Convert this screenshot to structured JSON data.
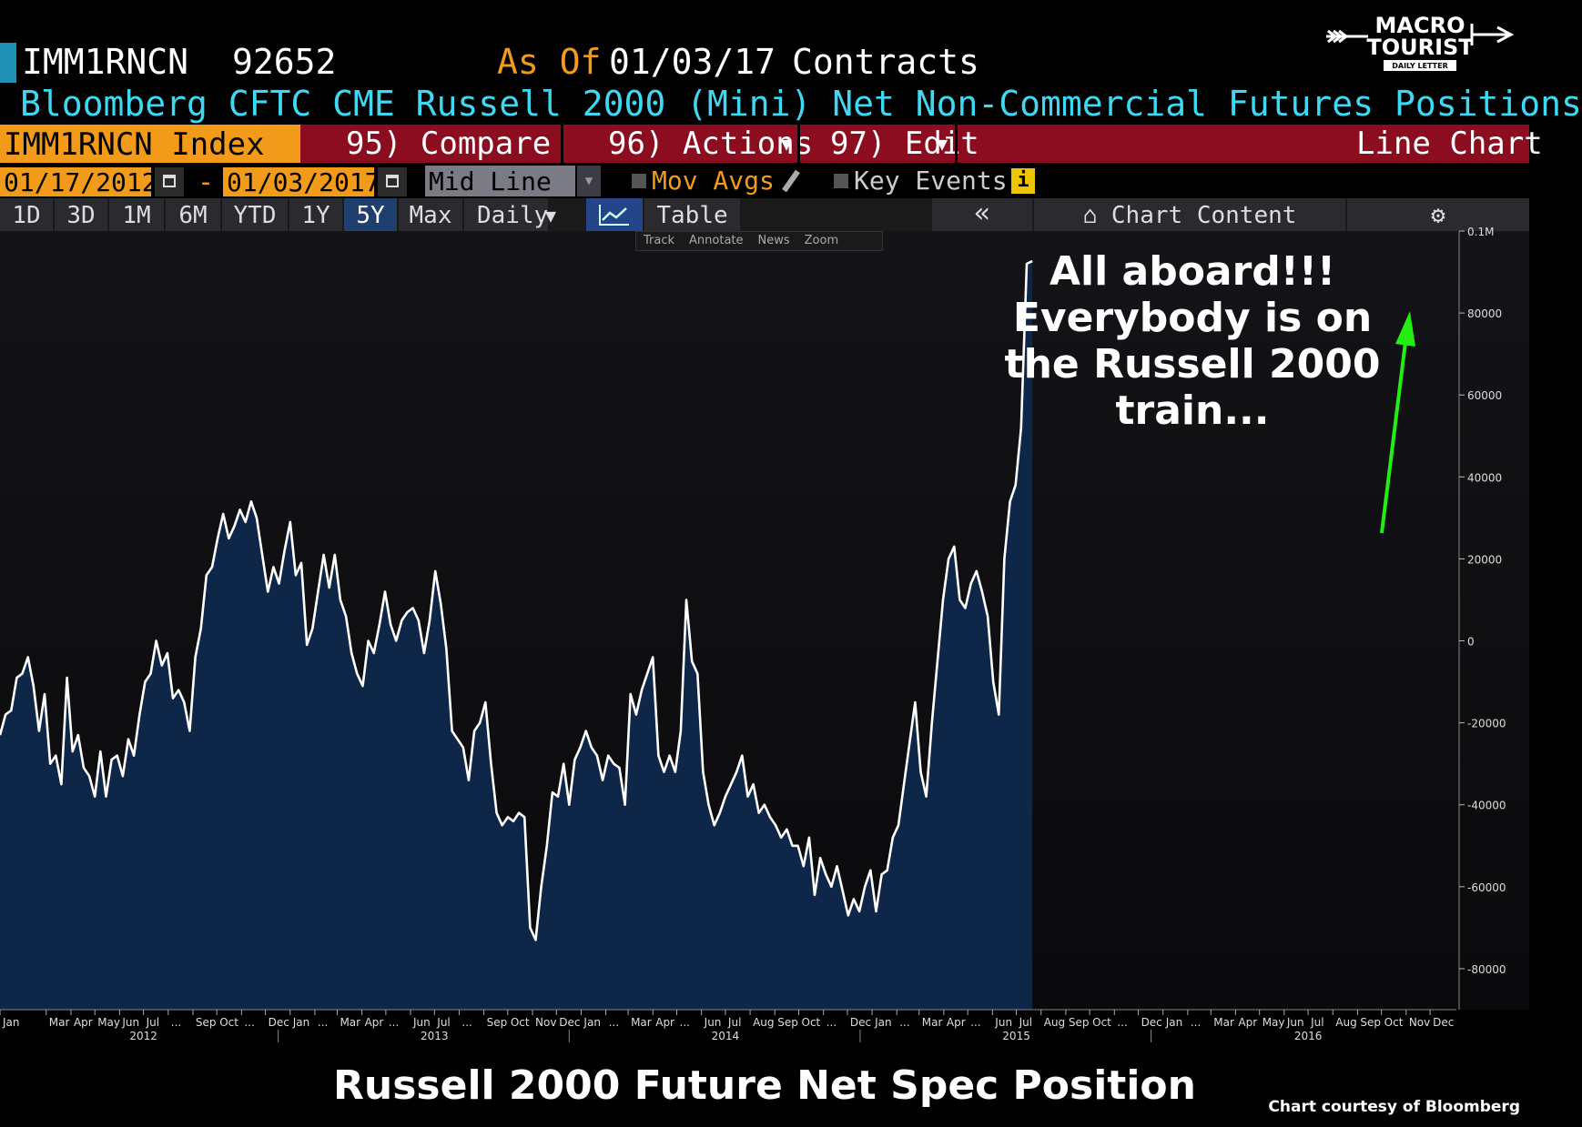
{
  "header": {
    "ticker": "IMM1RNCN",
    "last_value": "92652",
    "as_of_label": "As Of",
    "as_of_date": "01/03/17",
    "units": "Contracts",
    "description": "Bloomberg CFTC CME Russell 2000 (Mini) Net Non-Commercial Futures Positions"
  },
  "logo": {
    "line1": "MACRO",
    "line2": "TOURIST",
    "line3": "DAILY LETTER"
  },
  "toolbar": {
    "index_label": "IMM1RNCN Index",
    "compare_label": "95) Compare",
    "actions_label": "96) Actions",
    "edit_label": "97) Edit",
    "chart_type_label": "Line Chart"
  },
  "controls": {
    "start_date": "01/17/2012",
    "end_date": "01/03/2017",
    "mid_line": "Mid Line",
    "mov_avgs": "Mov Avgs",
    "key_events": "Key Events",
    "info": "i"
  },
  "ranges": [
    "1D",
    "3D",
    "1M",
    "6M",
    "YTD",
    "1Y",
    "5Y",
    "Max"
  ],
  "selected_range": "5Y",
  "frequency": "Daily",
  "view_table_label": "Table",
  "collapse_label": "«",
  "chart_content_label": "Chart Content",
  "subtools": [
    "Track",
    "Annotate",
    "News",
    "Zoom"
  ],
  "annotation": [
    "All aboard!!!",
    "Everybody is on",
    "the Russell 2000",
    "train..."
  ],
  "caption": "Russell 2000 Future Net Spec Position",
  "credit": "Chart courtesy of Bloomberg",
  "colors": {
    "fill": "#0e2647",
    "line": "#ffffff",
    "arrow": "#22ee11",
    "orange": "#f29a1a",
    "cyan": "#3fd8f2"
  },
  "chart_data": {
    "type": "area",
    "title": "Russell 2000 Future Net Spec Position",
    "xlabel": "",
    "ylabel": "",
    "xlim": [
      "2012-01-03",
      "2017-01-03"
    ],
    "ylim": [
      -90000,
      100000
    ],
    "y_ticks": [
      100000,
      80000,
      60000,
      40000,
      20000,
      0,
      -20000,
      -40000,
      -60000,
      -80000
    ],
    "y_tick_labels": [
      "0.1M",
      "80000",
      "60000",
      "40000",
      "20000",
      "0",
      "-20000",
      "-40000",
      "-60000",
      "-80000"
    ],
    "x_month_ticks": [
      {
        "date": "2012-01-03",
        "label": "Jan"
      },
      {
        "date": "2012-03-01",
        "label": "Mar"
      },
      {
        "date": "2012-04-01",
        "label": "Apr"
      },
      {
        "date": "2012-05-01",
        "label": "May"
      },
      {
        "date": "2012-06-01",
        "label": "Jun"
      },
      {
        "date": "2012-07-01",
        "label": "Jul"
      },
      {
        "date": "2012-08-01",
        "label": "..."
      },
      {
        "date": "2012-09-01",
        "label": "Sep"
      },
      {
        "date": "2012-10-01",
        "label": "Oct"
      },
      {
        "date": "2012-11-01",
        "label": "..."
      },
      {
        "date": "2012-12-01",
        "label": "Dec"
      },
      {
        "date": "2013-01-01",
        "label": "Jan"
      },
      {
        "date": "2013-02-01",
        "label": "..."
      },
      {
        "date": "2013-03-01",
        "label": "Mar"
      },
      {
        "date": "2013-04-01",
        "label": "Apr"
      },
      {
        "date": "2013-05-01",
        "label": "..."
      },
      {
        "date": "2013-06-01",
        "label": "Jun"
      },
      {
        "date": "2013-07-01",
        "label": "Jul"
      },
      {
        "date": "2013-08-01",
        "label": "..."
      },
      {
        "date": "2013-09-01",
        "label": "Sep"
      },
      {
        "date": "2013-10-01",
        "label": "Oct"
      },
      {
        "date": "2013-11-01",
        "label": "Nov"
      },
      {
        "date": "2013-12-01",
        "label": "Dec"
      },
      {
        "date": "2014-01-01",
        "label": "Jan"
      },
      {
        "date": "2014-02-01",
        "label": "..."
      },
      {
        "date": "2014-03-01",
        "label": "Mar"
      },
      {
        "date": "2014-04-01",
        "label": "Apr"
      },
      {
        "date": "2014-05-01",
        "label": "..."
      },
      {
        "date": "2014-06-01",
        "label": "Jun"
      },
      {
        "date": "2014-07-01",
        "label": "Jul"
      },
      {
        "date": "2014-08-01",
        "label": "Aug"
      },
      {
        "date": "2014-09-01",
        "label": "Sep"
      },
      {
        "date": "2014-10-01",
        "label": "Oct"
      },
      {
        "date": "2014-11-01",
        "label": "..."
      },
      {
        "date": "2014-12-01",
        "label": "Dec"
      },
      {
        "date": "2015-01-01",
        "label": "Jan"
      },
      {
        "date": "2015-02-01",
        "label": "..."
      },
      {
        "date": "2015-03-01",
        "label": "Mar"
      },
      {
        "date": "2015-04-01",
        "label": "Apr"
      },
      {
        "date": "2015-05-01",
        "label": "..."
      },
      {
        "date": "2015-06-01",
        "label": "Jun"
      },
      {
        "date": "2015-07-01",
        "label": "Jul"
      },
      {
        "date": "2015-08-01",
        "label": "Aug"
      },
      {
        "date": "2015-09-01",
        "label": "Sep"
      },
      {
        "date": "2015-10-01",
        "label": "Oct"
      },
      {
        "date": "2015-11-01",
        "label": "..."
      },
      {
        "date": "2015-12-01",
        "label": "Dec"
      },
      {
        "date": "2016-01-01",
        "label": "Jan"
      },
      {
        "date": "2016-02-01",
        "label": "..."
      },
      {
        "date": "2016-03-01",
        "label": "Mar"
      },
      {
        "date": "2016-04-01",
        "label": "Apr"
      },
      {
        "date": "2016-05-01",
        "label": "May"
      },
      {
        "date": "2016-06-01",
        "label": "Jun"
      },
      {
        "date": "2016-07-01",
        "label": "Jul"
      },
      {
        "date": "2016-08-01",
        "label": "Aug"
      },
      {
        "date": "2016-09-01",
        "label": "Sep"
      },
      {
        "date": "2016-10-01",
        "label": "Oct"
      },
      {
        "date": "2016-11-01",
        "label": "Nov"
      },
      {
        "date": "2016-12-01",
        "label": "Dec"
      }
    ],
    "x_year_ticks": [
      {
        "date": "2012-07-01",
        "label": "2012"
      },
      {
        "date": "2013-07-01",
        "label": "2013"
      },
      {
        "date": "2014-07-01",
        "label": "2014"
      },
      {
        "date": "2015-07-01",
        "label": "2015"
      },
      {
        "date": "2016-07-01",
        "label": "2016"
      }
    ],
    "x_year_separators": [
      "2012-12-17",
      "2013-12-17",
      "2014-12-17",
      "2015-12-17"
    ],
    "series": [
      {
        "values": [
          [
            "2012-01-03",
            -23000
          ],
          [
            "2012-01-10",
            -18000
          ],
          [
            "2012-01-17",
            -17000
          ],
          [
            "2012-01-24",
            -9000
          ],
          [
            "2012-01-31",
            -8000
          ],
          [
            "2012-02-07",
            -4000
          ],
          [
            "2012-02-14",
            -11000
          ],
          [
            "2012-02-21",
            -22000
          ],
          [
            "2012-02-28",
            -13000
          ],
          [
            "2012-03-06",
            -30000
          ],
          [
            "2012-03-13",
            -28000
          ],
          [
            "2012-03-20",
            -35000
          ],
          [
            "2012-03-27",
            -9000
          ],
          [
            "2012-04-03",
            -27000
          ],
          [
            "2012-04-10",
            -23000
          ],
          [
            "2012-04-17",
            -31000
          ],
          [
            "2012-04-24",
            -33000
          ],
          [
            "2012-05-01",
            -38000
          ],
          [
            "2012-05-08",
            -27000
          ],
          [
            "2012-05-15",
            -38000
          ],
          [
            "2012-05-22",
            -29000
          ],
          [
            "2012-05-29",
            -28000
          ],
          [
            "2012-06-05",
            -33000
          ],
          [
            "2012-06-12",
            -24000
          ],
          [
            "2012-06-19",
            -28000
          ],
          [
            "2012-06-26",
            -18000
          ],
          [
            "2012-07-03",
            -10000
          ],
          [
            "2012-07-10",
            -8000
          ],
          [
            "2012-07-17",
            0
          ],
          [
            "2012-07-24",
            -6000
          ],
          [
            "2012-07-31",
            -3000
          ],
          [
            "2012-08-07",
            -14000
          ],
          [
            "2012-08-14",
            -12000
          ],
          [
            "2012-08-21",
            -15000
          ],
          [
            "2012-08-28",
            -22000
          ],
          [
            "2012-09-04",
            -4000
          ],
          [
            "2012-09-11",
            3000
          ],
          [
            "2012-09-18",
            16000
          ],
          [
            "2012-09-25",
            18000
          ],
          [
            "2012-10-02",
            25000
          ],
          [
            "2012-10-09",
            31000
          ],
          [
            "2012-10-16",
            25000
          ],
          [
            "2012-10-23",
            28000
          ],
          [
            "2012-10-30",
            32000
          ],
          [
            "2012-11-06",
            29000
          ],
          [
            "2012-11-13",
            34000
          ],
          [
            "2012-11-20",
            30000
          ],
          [
            "2012-11-27",
            21000
          ],
          [
            "2012-12-04",
            12000
          ],
          [
            "2012-12-11",
            18000
          ],
          [
            "2012-12-18",
            14000
          ],
          [
            "2012-12-25",
            22000
          ],
          [
            "2013-01-01",
            29000
          ],
          [
            "2013-01-08",
            16000
          ],
          [
            "2013-01-15",
            19000
          ],
          [
            "2013-01-22",
            -1000
          ],
          [
            "2013-01-29",
            3000
          ],
          [
            "2013-02-05",
            12000
          ],
          [
            "2013-02-12",
            21000
          ],
          [
            "2013-02-19",
            13000
          ],
          [
            "2013-02-26",
            21000
          ],
          [
            "2013-03-05",
            10000
          ],
          [
            "2013-03-12",
            6000
          ],
          [
            "2013-03-19",
            -3000
          ],
          [
            "2013-03-26",
            -8000
          ],
          [
            "2013-04-02",
            -11000
          ],
          [
            "2013-04-09",
            0
          ],
          [
            "2013-04-16",
            -3000
          ],
          [
            "2013-04-23",
            4000
          ],
          [
            "2013-04-30",
            12000
          ],
          [
            "2013-05-07",
            4000
          ],
          [
            "2013-05-14",
            0
          ],
          [
            "2013-05-21",
            5000
          ],
          [
            "2013-05-28",
            7000
          ],
          [
            "2013-06-04",
            8000
          ],
          [
            "2013-06-11",
            5000
          ],
          [
            "2013-06-18",
            -3000
          ],
          [
            "2013-06-25",
            5000
          ],
          [
            "2013-07-02",
            17000
          ],
          [
            "2013-07-09",
            9000
          ],
          [
            "2013-07-16",
            -2000
          ],
          [
            "2013-07-23",
            -22000
          ],
          [
            "2013-07-30",
            -24000
          ],
          [
            "2013-08-06",
            -26000
          ],
          [
            "2013-08-13",
            -34000
          ],
          [
            "2013-08-20",
            -22000
          ],
          [
            "2013-08-27",
            -20000
          ],
          [
            "2013-09-03",
            -15000
          ],
          [
            "2013-09-10",
            -30000
          ],
          [
            "2013-09-17",
            -42000
          ],
          [
            "2013-09-24",
            -45000
          ],
          [
            "2013-10-01",
            -43000
          ],
          [
            "2013-10-08",
            -44000
          ],
          [
            "2013-10-15",
            -42000
          ],
          [
            "2013-10-22",
            -43000
          ],
          [
            "2013-10-29",
            -70000
          ],
          [
            "2013-11-05",
            -73000
          ],
          [
            "2013-11-12",
            -60000
          ],
          [
            "2013-11-19",
            -50000
          ],
          [
            "2013-11-26",
            -37000
          ],
          [
            "2013-12-03",
            -38000
          ],
          [
            "2013-12-10",
            -30000
          ],
          [
            "2013-12-17",
            -40000
          ],
          [
            "2013-12-24",
            -29000
          ],
          [
            "2013-12-31",
            -26000
          ],
          [
            "2014-01-07",
            -22000
          ],
          [
            "2014-01-14",
            -26000
          ],
          [
            "2014-01-21",
            -28000
          ],
          [
            "2014-01-28",
            -34000
          ],
          [
            "2014-02-04",
            -28000
          ],
          [
            "2014-02-11",
            -30000
          ],
          [
            "2014-02-18",
            -31000
          ],
          [
            "2014-02-25",
            -40000
          ],
          [
            "2014-03-04",
            -13000
          ],
          [
            "2014-03-11",
            -18000
          ],
          [
            "2014-03-18",
            -12000
          ],
          [
            "2014-03-25",
            -8000
          ],
          [
            "2014-04-01",
            -4000
          ],
          [
            "2014-04-08",
            -28000
          ],
          [
            "2014-04-15",
            -32000
          ],
          [
            "2014-04-22",
            -28000
          ],
          [
            "2014-04-29",
            -32000
          ],
          [
            "2014-05-06",
            -22000
          ],
          [
            "2014-05-13",
            10000
          ],
          [
            "2014-05-20",
            -5000
          ],
          [
            "2014-05-27",
            -8000
          ],
          [
            "2014-06-03",
            -32000
          ],
          [
            "2014-06-10",
            -40000
          ],
          [
            "2014-06-17",
            -45000
          ],
          [
            "2014-06-24",
            -42000
          ],
          [
            "2014-07-01",
            -38000
          ],
          [
            "2014-07-08",
            -35000
          ],
          [
            "2014-07-15",
            -32000
          ],
          [
            "2014-07-22",
            -28000
          ],
          [
            "2014-07-29",
            -38000
          ],
          [
            "2014-08-05",
            -35000
          ],
          [
            "2014-08-12",
            -42000
          ],
          [
            "2014-08-19",
            -40000
          ],
          [
            "2014-08-26",
            -43000
          ],
          [
            "2014-09-02",
            -45000
          ],
          [
            "2014-09-09",
            -48000
          ],
          [
            "2014-09-16",
            -46000
          ],
          [
            "2014-09-23",
            -50000
          ],
          [
            "2014-09-30",
            -50000
          ],
          [
            "2014-10-07",
            -55000
          ],
          [
            "2014-10-14",
            -48000
          ],
          [
            "2014-10-21",
            -62000
          ],
          [
            "2014-10-28",
            -53000
          ],
          [
            "2014-11-04",
            -57000
          ],
          [
            "2014-11-11",
            -60000
          ],
          [
            "2014-11-18",
            -55000
          ],
          [
            "2014-11-25",
            -61000
          ],
          [
            "2014-12-02",
            -67000
          ],
          [
            "2014-12-09",
            -63000
          ],
          [
            "2014-12-16",
            -66000
          ],
          [
            "2014-12-23",
            -60000
          ],
          [
            "2014-12-30",
            -56000
          ],
          [
            "2015-01-06",
            -66000
          ],
          [
            "2015-01-13",
            -57000
          ],
          [
            "2015-01-20",
            -56000
          ],
          [
            "2015-01-27",
            -48000
          ],
          [
            "2015-02-03",
            -45000
          ],
          [
            "2015-02-10",
            -35000
          ],
          [
            "2015-02-17",
            -25000
          ],
          [
            "2015-02-24",
            -15000
          ],
          [
            "2015-03-03",
            -32000
          ],
          [
            "2015-03-10",
            -38000
          ],
          [
            "2015-03-17",
            -20000
          ],
          [
            "2015-03-24",
            -5000
          ],
          [
            "2015-03-31",
            10000
          ],
          [
            "2015-04-07",
            20000
          ],
          [
            "2015-04-14",
            23000
          ],
          [
            "2015-04-21",
            10000
          ],
          [
            "2015-04-28",
            8000
          ],
          [
            "2015-05-05",
            14000
          ],
          [
            "2015-05-12",
            17000
          ],
          [
            "2015-05-19",
            12000
          ],
          [
            "2015-05-26",
            6000
          ],
          [
            "2015-06-02",
            -10000
          ],
          [
            "2015-06-09",
            -18000
          ],
          [
            "2015-06-16",
            20000
          ],
          [
            "2015-06-23",
            34000
          ],
          [
            "2015-06-30",
            38000
          ],
          [
            "2015-07-07",
            52000
          ],
          [
            "2015-07-14",
            92000
          ],
          [
            "2015-07-21",
            92652
          ]
        ]
      }
    ]
  }
}
